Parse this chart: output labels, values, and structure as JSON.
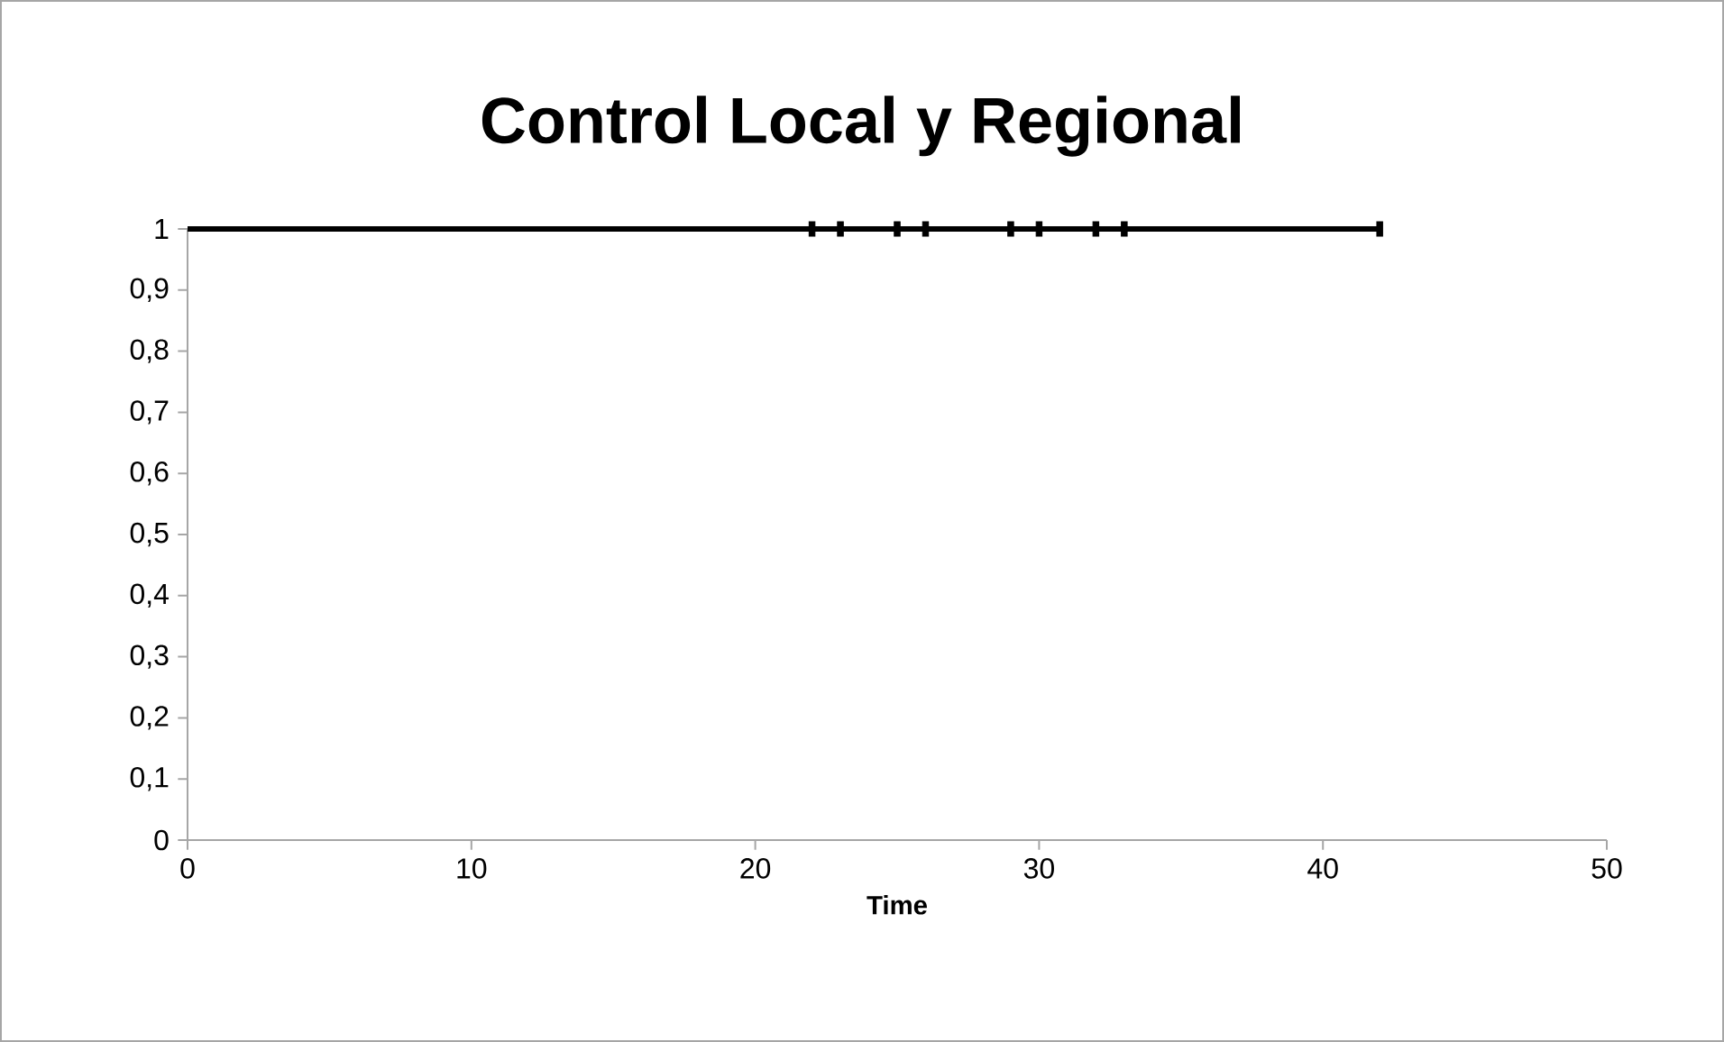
{
  "chart_data": {
    "type": "step",
    "title": "Control Local y Regional",
    "xlabel": "Time",
    "series": [
      {
        "color": "#000000",
        "x": [
          0,
          22,
          23,
          25,
          26,
          29,
          30,
          32,
          33,
          42
        ],
        "values": [
          1,
          1,
          1,
          1,
          1,
          1,
          1,
          1,
          1,
          1
        ]
      },
      {
        "type": "scatter",
        "marker": "square",
        "color": "#000000",
        "x": [
          22,
          23,
          25,
          26,
          29,
          30,
          32,
          33,
          42
        ],
        "values": [
          1,
          1,
          1,
          1,
          1,
          1,
          1,
          1,
          1
        ]
      }
    ],
    "xlim": [
      0,
      50
    ],
    "xticks": [
      0,
      10,
      20,
      30,
      40,
      50
    ],
    "ylim": [
      0,
      1
    ],
    "yticks": [
      0,
      {
        "value": 0.1,
        "label": "0,1"
      },
      {
        "value": 0.2,
        "label": "0,2"
      },
      {
        "value": 0.3,
        "label": "0,3"
      },
      {
        "value": 0.4,
        "label": "0,4"
      },
      {
        "value": 0.5,
        "label": "0,5"
      },
      {
        "value": 0.6,
        "label": "0,6"
      },
      {
        "value": 0.7,
        "label": "0,7"
      },
      {
        "value": 0.8,
        "label": "0,8"
      },
      {
        "value": 0.9,
        "label": "0,9"
      },
      1
    ],
    "grid": false
  }
}
